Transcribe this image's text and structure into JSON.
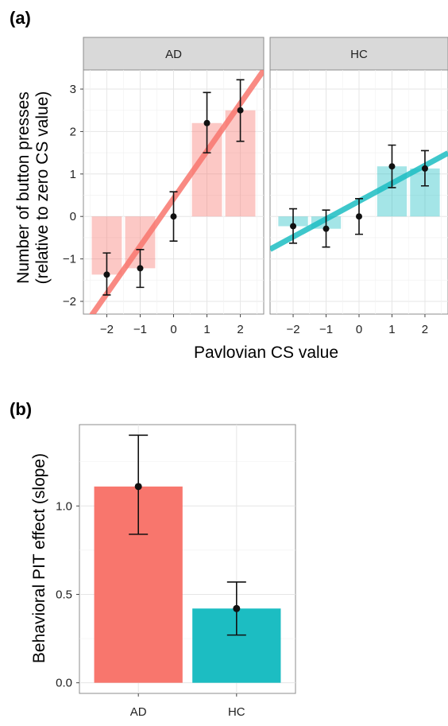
{
  "panel_a": {
    "letter": "(a)",
    "ylabel_line1": "Number of button presses",
    "ylabel_line2": "(relative to zero CS value)",
    "xlabel": "Pavlovian CS value"
  },
  "panel_b": {
    "letter": "(b)",
    "ylabel": "Behavioral PIT effect (slope)"
  },
  "colors": {
    "AD": "#f8766d",
    "HC": "#1cbdc2"
  },
  "chart_data": [
    {
      "type": "bar",
      "facets": [
        "AD",
        "HC"
      ],
      "x": [
        -2,
        -1,
        0,
        1,
        2
      ],
      "xticks": [
        "−2",
        "−1",
        "0",
        "1",
        "2"
      ],
      "yticks": [
        "−2",
        "−1",
        "0",
        "1",
        "2",
        "3"
      ],
      "xlabel": "Pavlovian CS value",
      "ylabel": "Number of button presses (relative to zero CS value)",
      "ylim": [
        -2.3,
        3.45
      ],
      "grid": true,
      "series": [
        {
          "name": "AD",
          "bar_values": [
            -1.37,
            -1.22,
            0.0,
            2.2,
            2.5
          ],
          "point_values": [
            -1.37,
            -1.22,
            0.0,
            2.2,
            2.5
          ],
          "err_low": [
            -1.85,
            -1.67,
            -0.58,
            1.5,
            1.77
          ],
          "err_high": [
            -0.86,
            -0.78,
            0.58,
            2.92,
            3.22
          ],
          "fit_line": {
            "intercept": 0.42,
            "slope": 1.12
          }
        },
        {
          "name": "HC",
          "bar_values": [
            -0.23,
            -0.29,
            0.0,
            1.18,
            1.13
          ],
          "point_values": [
            -0.23,
            -0.29,
            0.0,
            1.18,
            1.13
          ],
          "err_low": [
            -0.63,
            -0.72,
            -0.42,
            0.68,
            0.72
          ],
          "err_high": [
            0.18,
            0.15,
            0.42,
            1.68,
            1.55
          ],
          "fit_line": {
            "intercept": 0.36,
            "slope": 0.42
          }
        }
      ]
    },
    {
      "type": "bar",
      "categories": [
        "AD",
        "HC"
      ],
      "values": [
        1.11,
        0.42
      ],
      "points": [
        1.11,
        0.42
      ],
      "err_low": [
        0.84,
        0.27
      ],
      "err_high": [
        1.4,
        0.57
      ],
      "yticks": [
        "0.0",
        "0.5",
        "1.0"
      ],
      "ylabel": "Behavioral PIT effect (slope)",
      "ylim": [
        -0.06,
        1.46
      ],
      "grid": true
    }
  ]
}
